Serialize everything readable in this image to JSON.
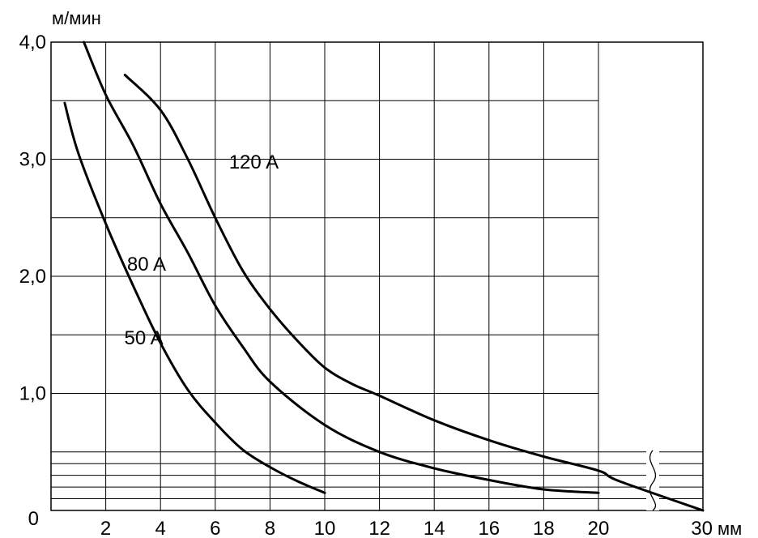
{
  "chart_data": {
    "type": "line",
    "ylabel": "м/мин",
    "xlabel": "мм",
    "xlim": [
      0,
      30
    ],
    "ylim": [
      0,
      4.0
    ],
    "grid": true,
    "y_ticks": [
      {
        "value": 0,
        "label": "0"
      },
      {
        "value": 1.0,
        "label": "1,0"
      },
      {
        "value": 2.0,
        "label": "2,0"
      },
      {
        "value": 3.0,
        "label": "3,0"
      },
      {
        "value": 4.0,
        "label": "4,0"
      }
    ],
    "x_ticks": [
      {
        "value": 2,
        "label": "2"
      },
      {
        "value": 4,
        "label": "4"
      },
      {
        "value": 6,
        "label": "6"
      },
      {
        "value": 8,
        "label": "8"
      },
      {
        "value": 10,
        "label": "10"
      },
      {
        "value": 12,
        "label": "12"
      },
      {
        "value": 14,
        "label": "14"
      },
      {
        "value": 16,
        "label": "16"
      },
      {
        "value": 18,
        "label": "18"
      },
      {
        "value": 20,
        "label": "20"
      },
      {
        "value": 30,
        "label": "30"
      }
    ],
    "x_unit_label": "мм",
    "axis_break": "between 20 and 30 mm",
    "series": [
      {
        "name": "50 A",
        "x": [
          0.5,
          1,
          2,
          3,
          4,
          5,
          6,
          7,
          8,
          9,
          10
        ],
        "y": [
          3.48,
          3.05,
          2.45,
          1.92,
          1.43,
          1.03,
          0.75,
          0.52,
          0.37,
          0.25,
          0.15
        ]
      },
      {
        "name": "80 A",
        "x": [
          1.2,
          2,
          3,
          4,
          5,
          6,
          7,
          8,
          10,
          12,
          14,
          16,
          18,
          20
        ],
        "y": [
          4.0,
          3.55,
          3.12,
          2.62,
          2.2,
          1.75,
          1.4,
          1.1,
          0.73,
          0.5,
          0.36,
          0.26,
          0.18,
          0.15
        ]
      },
      {
        "name": "120 A",
        "x": [
          2.7,
          4,
          5,
          6,
          7,
          8,
          9,
          10,
          11,
          12,
          14,
          16,
          18,
          20,
          22,
          30
        ],
        "y": [
          3.72,
          3.42,
          3.0,
          2.5,
          2.05,
          1.72,
          1.45,
          1.22,
          1.08,
          0.98,
          0.77,
          0.6,
          0.46,
          0.34,
          0.25,
          0.0
        ]
      }
    ]
  }
}
